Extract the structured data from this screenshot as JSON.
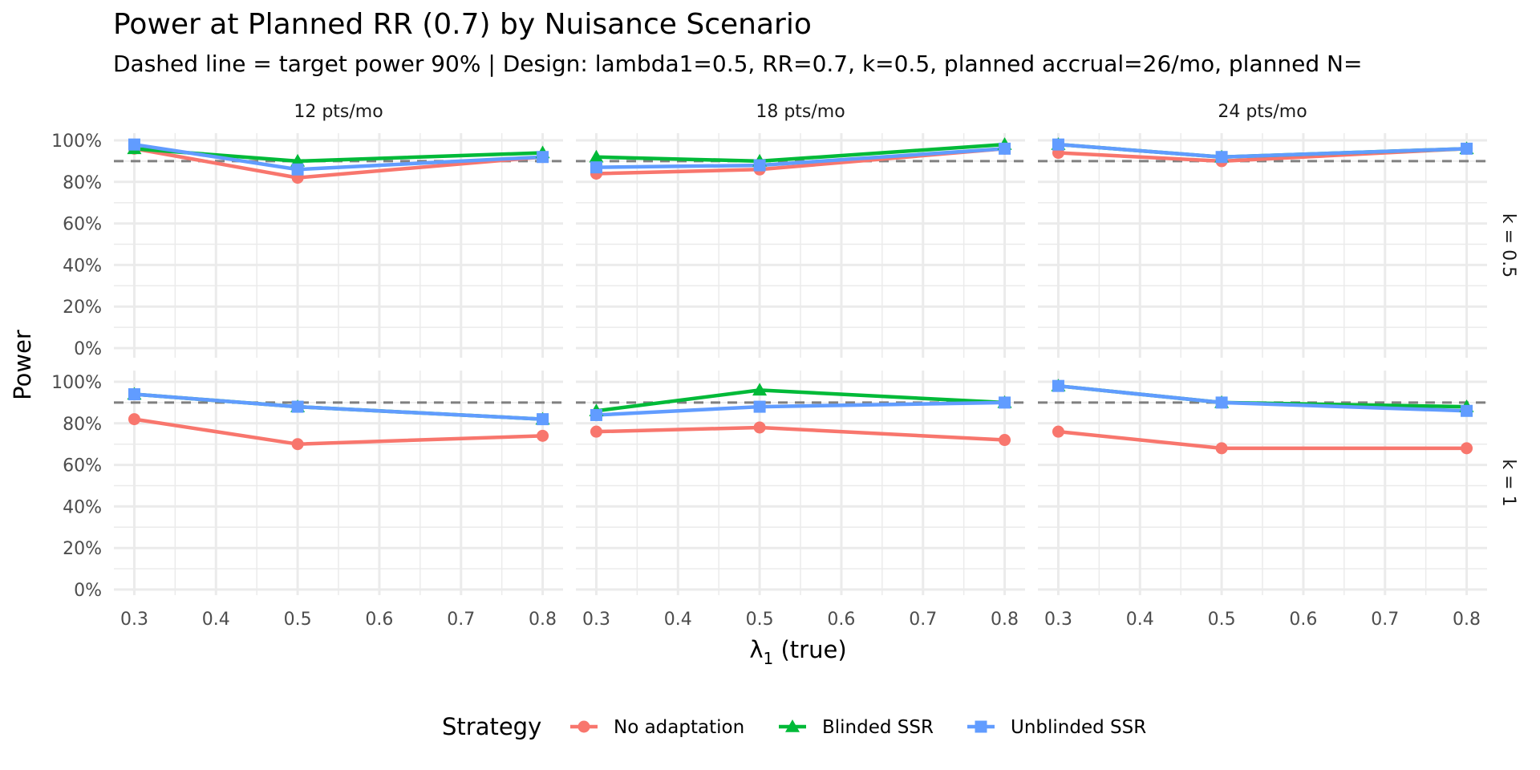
{
  "chart_data": {
    "type": "line",
    "title": "Power at Planned RR (0.7) by Nuisance Scenario",
    "subtitle": "Dashed line = target power 90% | Design: lambda1=0.5, RR=0.7, k=0.5, planned accrual=26/mo, planned N=",
    "xlabel_main": "λ",
    "xlabel_sub": "1",
    "xlabel_suffix": " (true)",
    "ylabel": "Power",
    "xlim": [
      0.275,
      0.825
    ],
    "ylim": [
      0,
      100
    ],
    "x_ticks": [
      "0.3",
      "0.4",
      "0.5",
      "0.6",
      "0.7",
      "0.8"
    ],
    "x_tick_values": [
      0.3,
      0.4,
      0.5,
      0.6,
      0.7,
      0.8
    ],
    "y_ticks": [
      "0%",
      "20%",
      "40%",
      "60%",
      "80%",
      "100%"
    ],
    "y_tick_values": [
      0,
      20,
      40,
      60,
      80,
      100
    ],
    "target_power": 90,
    "grid": true,
    "x": [
      0.3,
      0.5,
      0.8
    ],
    "columns": [
      "12 pts/mo",
      "18 pts/mo",
      "24 pts/mo"
    ],
    "rows": [
      "k = 0.5",
      "k = 1"
    ],
    "legend": {
      "title": "Strategy",
      "position": "bottom",
      "entries": [
        {
          "name": "No adaptation",
          "color": "#F8766D",
          "shape": "circle"
        },
        {
          "name": "Blinded SSR",
          "color": "#00BA38",
          "shape": "triangle"
        },
        {
          "name": "Unblinded SSR",
          "color": "#619CFF",
          "shape": "square"
        }
      ]
    },
    "panels": [
      {
        "row": 0,
        "col": 0,
        "series": [
          {
            "name": "No adaptation",
            "values": [
              96,
              82,
              92
            ]
          },
          {
            "name": "Blinded SSR",
            "values": [
              96,
              90,
              94
            ]
          },
          {
            "name": "Unblinded SSR",
            "values": [
              98,
              86,
              92
            ]
          }
        ]
      },
      {
        "row": 0,
        "col": 1,
        "series": [
          {
            "name": "No adaptation",
            "values": [
              84,
              86,
              96
            ]
          },
          {
            "name": "Blinded SSR",
            "values": [
              92,
              90,
              98
            ]
          },
          {
            "name": "Unblinded SSR",
            "values": [
              87,
              88,
              96
            ]
          }
        ]
      },
      {
        "row": 0,
        "col": 2,
        "series": [
          {
            "name": "No adaptation",
            "values": [
              94,
              90,
              96
            ]
          },
          {
            "name": "Blinded SSR",
            "values": [
              98,
              92,
              96
            ]
          },
          {
            "name": "Unblinded SSR",
            "values": [
              98,
              92,
              96
            ]
          }
        ]
      },
      {
        "row": 1,
        "col": 0,
        "series": [
          {
            "name": "No adaptation",
            "values": [
              82,
              70,
              74
            ]
          },
          {
            "name": "Blinded SSR",
            "values": [
              94,
              88,
              82
            ]
          },
          {
            "name": "Unblinded SSR",
            "values": [
              94,
              88,
              82
            ]
          }
        ]
      },
      {
        "row": 1,
        "col": 1,
        "series": [
          {
            "name": "No adaptation",
            "values": [
              76,
              78,
              72
            ]
          },
          {
            "name": "Blinded SSR",
            "values": [
              86,
              96,
              90
            ]
          },
          {
            "name": "Unblinded SSR",
            "values": [
              84,
              88,
              90
            ]
          }
        ]
      },
      {
        "row": 1,
        "col": 2,
        "series": [
          {
            "name": "No adaptation",
            "values": [
              76,
              68,
              68
            ]
          },
          {
            "name": "Blinded SSR",
            "values": [
              98,
              90,
              88
            ]
          },
          {
            "name": "Unblinded SSR",
            "values": [
              98,
              90,
              86
            ]
          }
        ]
      }
    ]
  }
}
